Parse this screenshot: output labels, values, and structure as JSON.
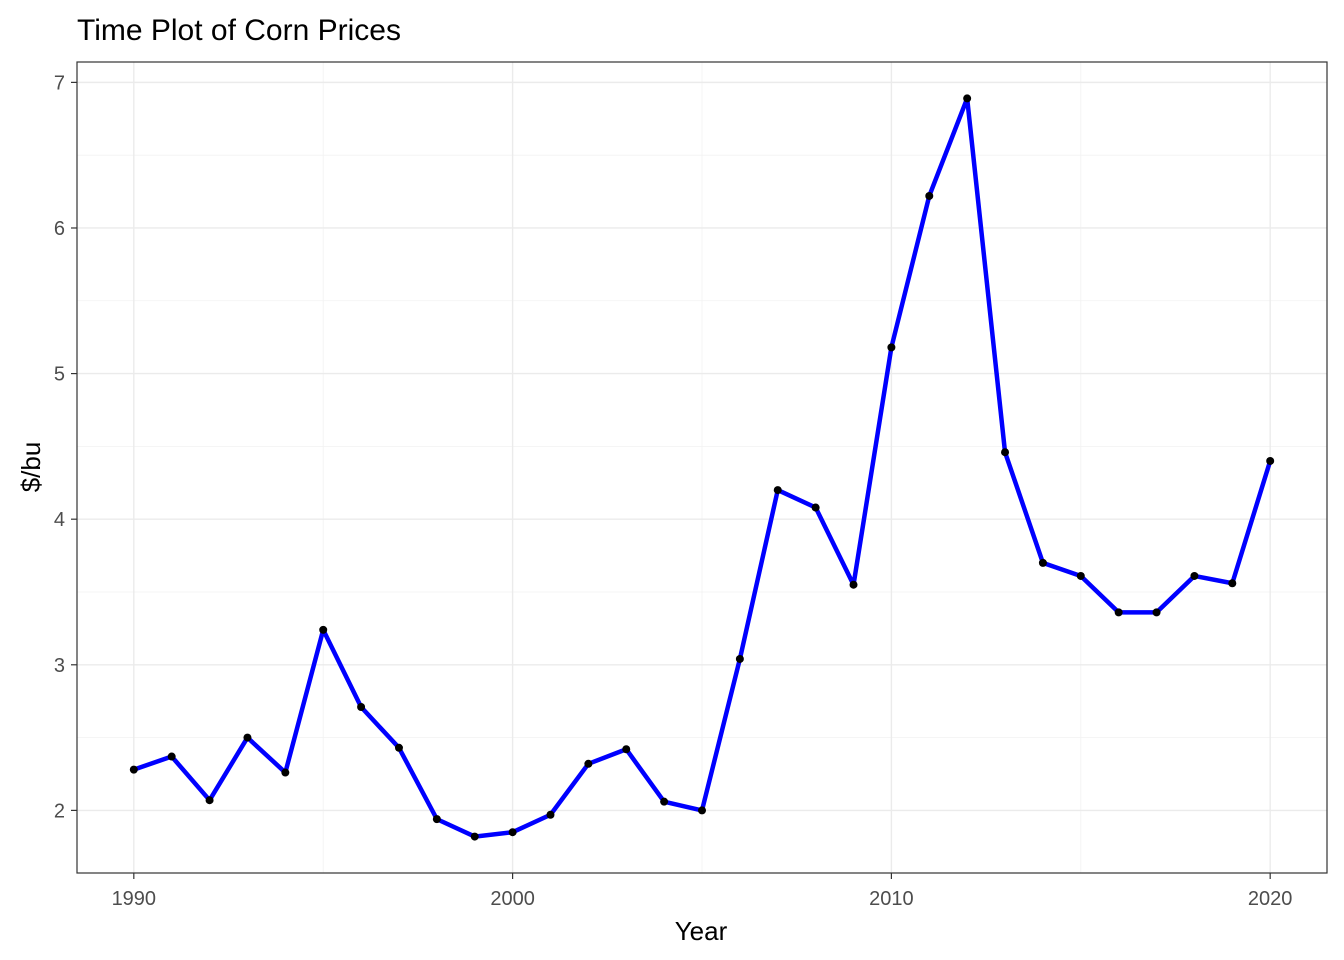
{
  "chart_data": {
    "type": "line",
    "title": "Time Plot of Corn Prices",
    "xlabel": "Year",
    "ylabel": "$/bu",
    "xlim": [
      1988.5,
      2021.5
    ],
    "ylim": [
      1.57,
      7.14
    ],
    "x_ticks": [
      1990,
      2000,
      2010,
      2020
    ],
    "y_ticks": [
      2,
      3,
      4,
      5,
      6,
      7
    ],
    "grid": true,
    "legend": "none",
    "line_color": "#0000ff",
    "point_color": "#000000",
    "x": [
      1990,
      1991,
      1992,
      1993,
      1994,
      1995,
      1996,
      1997,
      1998,
      1999,
      2000,
      2001,
      2002,
      2003,
      2004,
      2005,
      2006,
      2007,
      2008,
      2009,
      2010,
      2011,
      2012,
      2013,
      2014,
      2015,
      2016,
      2017,
      2018,
      2019,
      2020
    ],
    "values": [
      2.28,
      2.37,
      2.07,
      2.5,
      2.26,
      3.24,
      2.71,
      2.43,
      1.94,
      1.82,
      1.85,
      1.97,
      2.32,
      2.42,
      2.06,
      2.0,
      3.04,
      4.2,
      4.08,
      3.55,
      5.18,
      6.22,
      6.89,
      4.46,
      3.7,
      3.61,
      3.36,
      3.36,
      3.61,
      3.56,
      4.4
    ]
  }
}
